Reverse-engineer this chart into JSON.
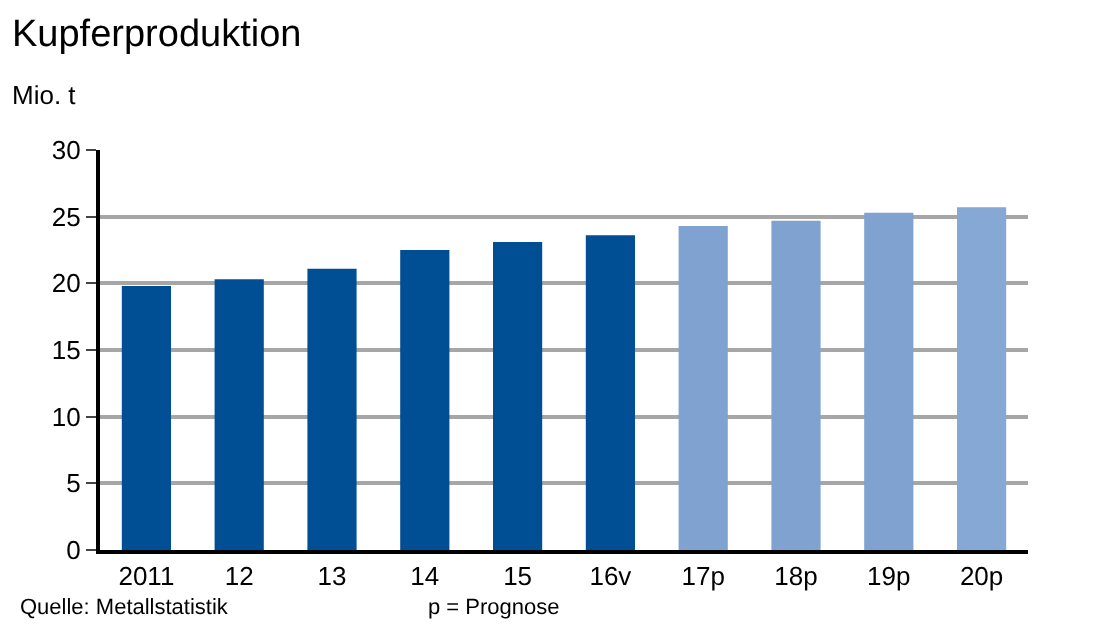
{
  "chart_data": {
    "type": "bar",
    "title": "Kupferproduktion",
    "ylabel": "Mio. t",
    "categories": [
      "2011",
      "12",
      "13",
      "14",
      "15",
      "16v",
      "17p",
      "18p",
      "19p",
      "20p"
    ],
    "values": [
      19.8,
      20.3,
      21.1,
      22.5,
      23.1,
      23.6,
      24.3,
      24.7,
      25.3,
      25.7
    ],
    "colors": [
      "#004f94",
      "#004f94",
      "#004f94",
      "#004f94",
      "#004f94",
      "#004f94",
      "#7fa2d0",
      "#7fa2d0",
      "#7fa2d0",
      "#86a8d4"
    ],
    "ylim": [
      0,
      30
    ],
    "yticks": [
      0,
      5,
      10,
      15,
      20,
      25,
      30
    ],
    "grid": "y",
    "annotations": [
      "Quelle: Metallstatistik",
      "p = Prognose"
    ]
  }
}
